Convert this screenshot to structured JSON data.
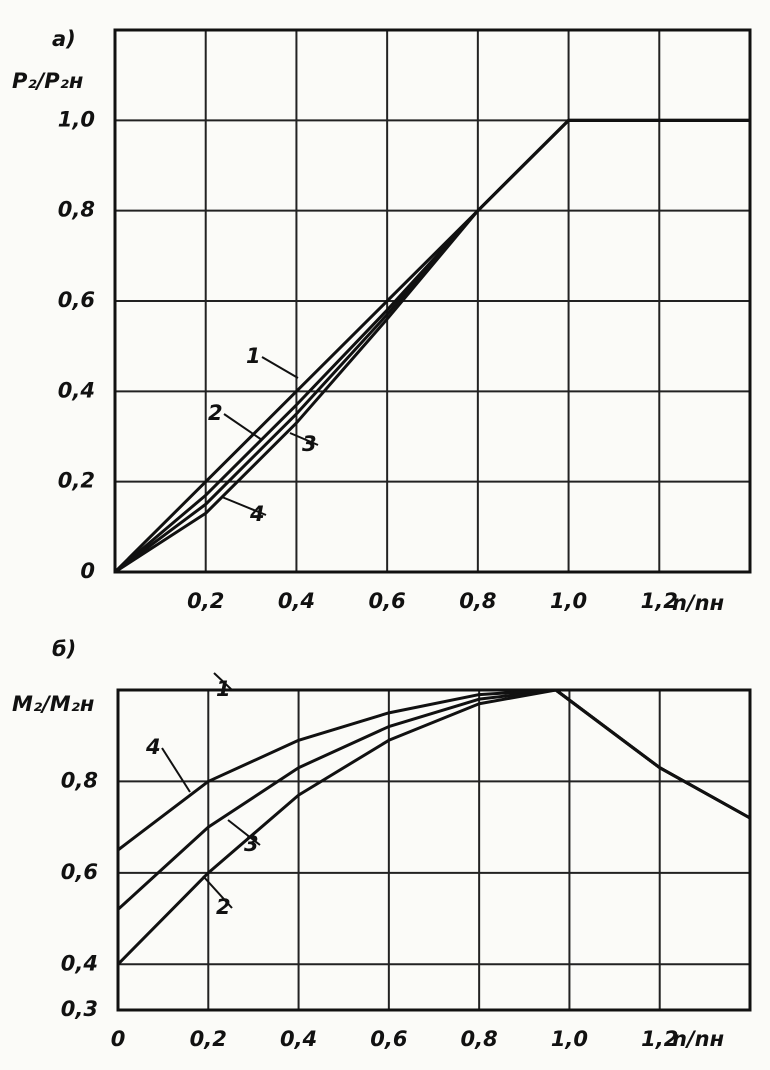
{
  "chart_data": [
    {
      "type": "line",
      "title": "а)",
      "y_label": "P₂/P₂н",
      "x_label": "n/nн",
      "x": [
        0,
        0.2,
        0.4,
        0.6,
        0.8,
        1.0,
        1.2,
        1.4
      ],
      "series": [
        {
          "name": "1",
          "color": "#111111",
          "values": [
            0,
            0.2,
            0.4,
            0.6,
            0.8,
            1.0,
            1.0,
            1.0
          ]
        },
        {
          "name": "2",
          "color": "#111111",
          "values": [
            0,
            0.17,
            0.37,
            0.58,
            0.8,
            1.0,
            1.0,
            1.0
          ]
        },
        {
          "name": "3",
          "color": "#111111",
          "values": [
            0,
            0.15,
            0.35,
            0.57,
            0.8,
            1.0,
            1.0,
            1.0
          ]
        },
        {
          "name": "4",
          "color": "#111111",
          "values": [
            0,
            0.13,
            0.33,
            0.56,
            0.8,
            1.0,
            1.0,
            1.0
          ]
        }
      ],
      "xlim": [
        0,
        1.4
      ],
      "ylim": [
        0,
        1.2
      ],
      "xticks": [
        {
          "value": 0.2,
          "label": "0,2"
        },
        {
          "value": 0.4,
          "label": "0,4"
        },
        {
          "value": 0.6,
          "label": "0,6"
        },
        {
          "value": 0.8,
          "label": "0,8"
        },
        {
          "value": 1.0,
          "label": "1,0"
        },
        {
          "value": 1.2,
          "label": "1,2"
        }
      ],
      "yticks": [
        0,
        {
          "value": 0.2,
          "label": "0,2"
        },
        {
          "value": 0.4,
          "label": "0,4"
        },
        {
          "value": 0.6,
          "label": "0,6"
        },
        {
          "value": 0.8,
          "label": "0,8"
        },
        {
          "value": 1.0,
          "label": "1,0"
        }
      ],
      "grid": true
    },
    {
      "type": "line",
      "title": "б)",
      "y_label": "M₂/M₂н",
      "x_label": "n/nн",
      "x": [
        0,
        0.2,
        0.4,
        0.6,
        0.8,
        0.97,
        1.2,
        1.4
      ],
      "series": [
        {
          "name": "1",
          "color": "#111111",
          "values": [
            1.0,
            1.0,
            1.0,
            1.0,
            1.0,
            1.0,
            0.83,
            0.72
          ]
        },
        {
          "name": "2",
          "color": "#111111",
          "values": [
            0.4,
            0.6,
            0.77,
            0.89,
            0.97,
            1.0,
            0.83,
            0.72
          ]
        },
        {
          "name": "3",
          "color": "#111111",
          "values": [
            0.52,
            0.7,
            0.83,
            0.92,
            0.98,
            1.0,
            0.83,
            0.72
          ]
        },
        {
          "name": "4",
          "color": "#111111",
          "values": [
            0.65,
            0.8,
            0.89,
            0.95,
            0.99,
            1.0,
            0.83,
            0.72
          ]
        }
      ],
      "xlim": [
        0,
        1.4
      ],
      "ylim": [
        0.3,
        1.0
      ],
      "xticks": [
        0,
        {
          "value": 0.2,
          "label": "0,2"
        },
        {
          "value": 0.4,
          "label": "0,4"
        },
        {
          "value": 0.6,
          "label": "0,6"
        },
        {
          "value": 0.8,
          "label": "0,8"
        },
        {
          "value": 1.0,
          "label": "1,0"
        },
        {
          "value": 1.2,
          "label": "1,2"
        }
      ],
      "yticks": [
        {
          "value": 0.3,
          "label": "0,3"
        },
        {
          "value": 0.4,
          "label": "0,4"
        },
        {
          "value": 0.6,
          "label": "0,6"
        },
        {
          "value": 0.8,
          "label": "0,8"
        }
      ],
      "grid": true
    }
  ]
}
